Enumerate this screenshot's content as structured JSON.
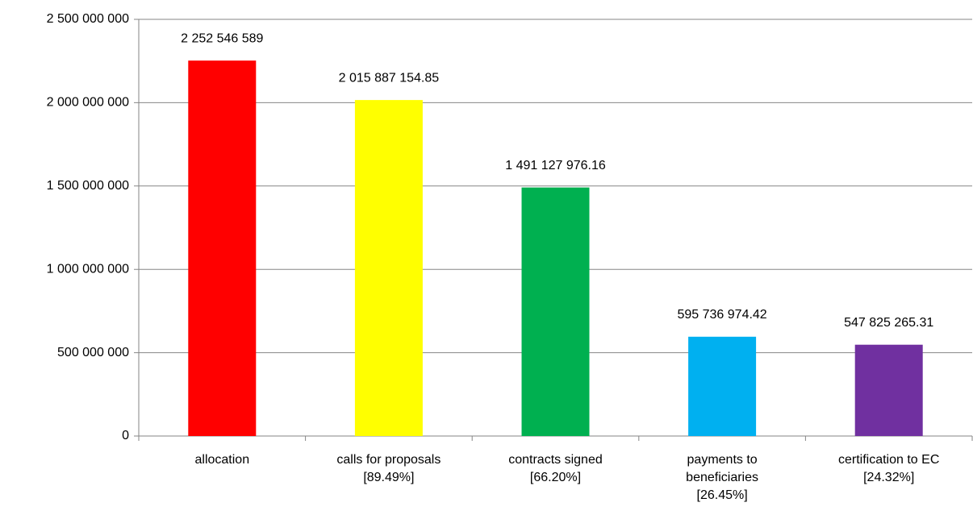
{
  "chart_data": {
    "type": "bar",
    "categories": [
      "allocation",
      "calls for proposals\n[89.49%]",
      "contracts signed\n[66.20%]",
      "payments to\nbeneficiaries\n[26.45%]",
      "certification to EC\n[24.32%]"
    ],
    "values": [
      2252546589,
      2015887154.85,
      1491127976.16,
      595736974.42,
      547825265.31
    ],
    "value_labels": [
      "2 252 546 589",
      "2 015 887 154.85",
      "1 491 127 976.16",
      "595 736 974.42",
      "547 825 265.31"
    ],
    "colors": [
      "#ff0000",
      "#ffff00",
      "#00b050",
      "#00b0f0",
      "#7030a0"
    ],
    "ylim": [
      0,
      2500000000
    ],
    "yticks": [
      0,
      {
        "value": 500000000,
        "label": "500 000 000"
      },
      {
        "value": 1000000000,
        "label": "1 000 000 000"
      },
      {
        "value": 1500000000,
        "label": "1 500 000 000"
      },
      {
        "value": 2000000000,
        "label": "2 000 000 000"
      },
      {
        "value": 2500000000,
        "label": "2 500 000 000"
      }
    ],
    "grid": true
  }
}
